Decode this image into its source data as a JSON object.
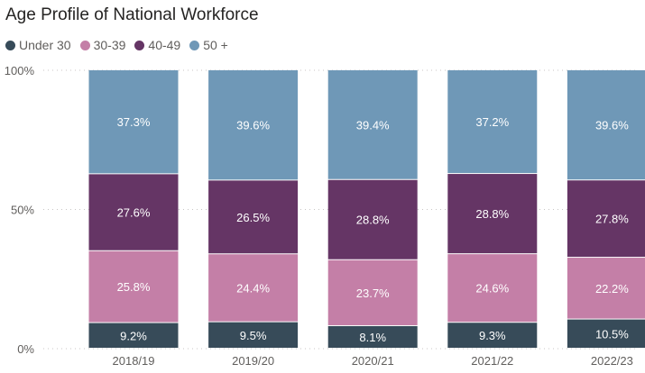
{
  "chart_data": {
    "type": "bar",
    "stacked": true,
    "percent_stacked": true,
    "title": "Age Profile of National Workforce",
    "categories": [
      "2018/19",
      "2019/20",
      "2020/21",
      "2021/22",
      "2022/23"
    ],
    "series": [
      {
        "name": "Under 30",
        "color": "#374b59",
        "values": [
          9.2,
          9.5,
          8.1,
          9.3,
          10.5
        ],
        "labels": [
          "9.2%",
          "9.5%",
          "8.1%",
          "9.3%",
          "10.5%"
        ]
      },
      {
        "name": "30-39",
        "color": "#c47fa7",
        "values": [
          25.8,
          24.4,
          23.7,
          24.6,
          22.2
        ],
        "labels": [
          "25.8%",
          "24.4%",
          "23.7%",
          "24.6%",
          "22.2%"
        ]
      },
      {
        "name": "40-49",
        "color": "#653565",
        "values": [
          27.6,
          26.5,
          28.8,
          28.8,
          27.8
        ],
        "labels": [
          "27.6%",
          "26.5%",
          "28.8%",
          "28.8%",
          "27.8%"
        ]
      },
      {
        "name": "50 +",
        "color": "#6f98b7",
        "values": [
          37.3,
          39.6,
          39.4,
          37.2,
          39.6
        ],
        "labels": [
          "37.3%",
          "39.6%",
          "39.4%",
          "37.2%",
          "39.6%"
        ]
      }
    ],
    "ylim": [
      0,
      100
    ],
    "yticks": [
      {
        "value": 0,
        "label": "0%"
      },
      {
        "value": 50,
        "label": "50%"
      },
      {
        "value": 100,
        "label": "100%"
      }
    ],
    "grid": true,
    "legend_position": "top-left"
  }
}
